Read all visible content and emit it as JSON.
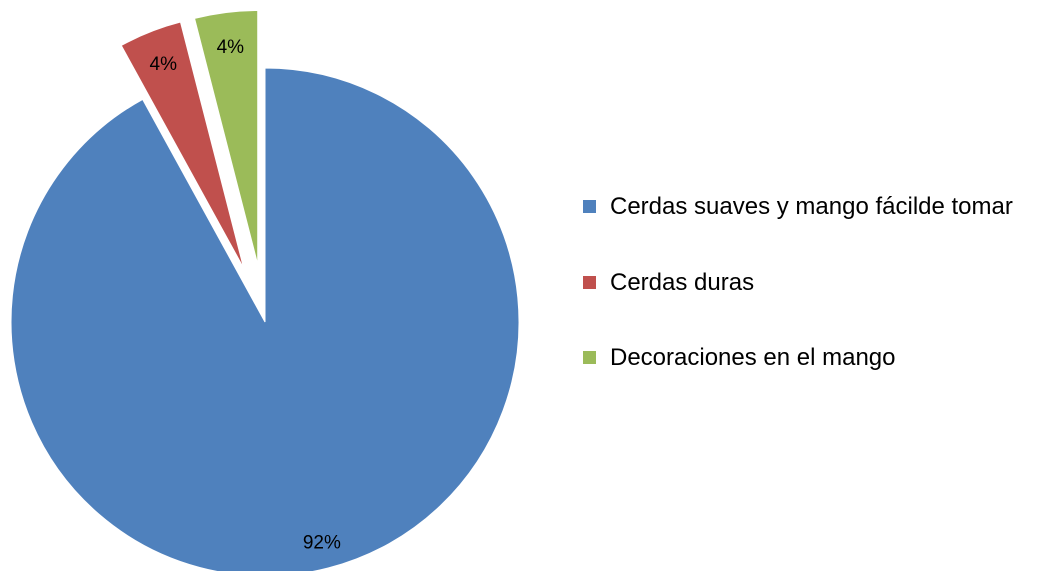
{
  "chart_data": {
    "type": "pie",
    "categories": [
      "Cerdas suaves y mango fácilde tomar",
      "Cerdas duras",
      "Decoraciones en el mango"
    ],
    "values": [
      92,
      4,
      4
    ],
    "value_labels": [
      "92%",
      "4%",
      "4%"
    ],
    "colors": [
      "#4f81bd",
      "#c0504d",
      "#9bbb59"
    ],
    "legend": "right"
  }
}
